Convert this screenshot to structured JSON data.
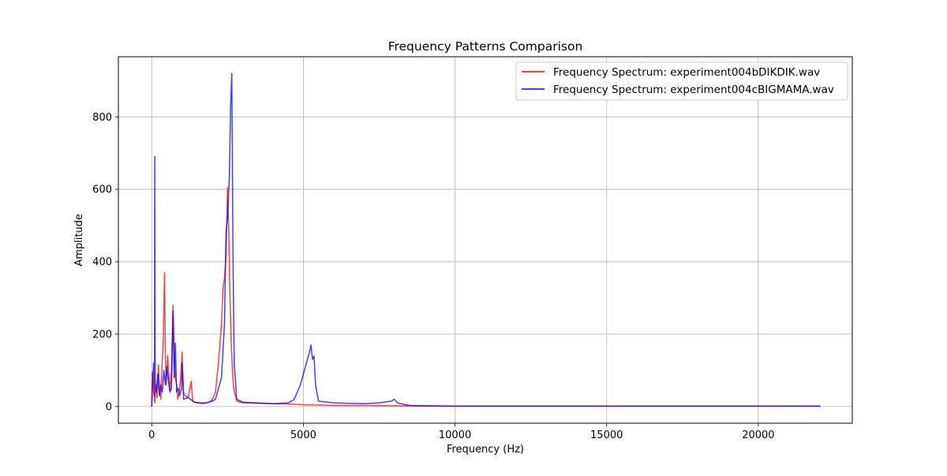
{
  "chart_data": {
    "type": "line",
    "title": "Frequency Patterns Comparison",
    "xlabel": "Frequency (Hz)",
    "ylabel": "Amplitude",
    "xlim": [
      -1100,
      23100
    ],
    "ylim": [
      -46,
      966
    ],
    "xticks": [
      0,
      5000,
      10000,
      15000,
      20000
    ],
    "yticks": [
      0,
      200,
      400,
      600,
      800
    ],
    "grid": true,
    "legend_position": "top-right",
    "series": [
      {
        "name": "Frequency Spectrum: experiment004bDIKDIK.wav",
        "color": "#ff0000",
        "alpha": 0.75,
        "points": [
          [
            0,
            0
          ],
          [
            20,
            95
          ],
          [
            60,
            40
          ],
          [
            100,
            10
          ],
          [
            140,
            60
          ],
          [
            180,
            25
          ],
          [
            220,
            115
          ],
          [
            260,
            50
          ],
          [
            300,
            20
          ],
          [
            340,
            110
          ],
          [
            380,
            185
          ],
          [
            420,
            370
          ],
          [
            450,
            140
          ],
          [
            480,
            60
          ],
          [
            520,
            140
          ],
          [
            560,
            90
          ],
          [
            600,
            45
          ],
          [
            650,
            100
          ],
          [
            700,
            280
          ],
          [
            740,
            150
          ],
          [
            780,
            80
          ],
          [
            820,
            60
          ],
          [
            860,
            20
          ],
          [
            900,
            40
          ],
          [
            950,
            75
          ],
          [
            1000,
            150
          ],
          [
            1050,
            40
          ],
          [
            1100,
            30
          ],
          [
            1200,
            25
          ],
          [
            1300,
            70
          ],
          [
            1350,
            15
          ],
          [
            1500,
            10
          ],
          [
            1700,
            8
          ],
          [
            1900,
            12
          ],
          [
            2000,
            20
          ],
          [
            2100,
            40
          ],
          [
            2200,
            120
          ],
          [
            2300,
            230
          ],
          [
            2350,
            330
          ],
          [
            2400,
            355
          ],
          [
            2450,
            420
          ],
          [
            2500,
            605
          ],
          [
            2540,
            480
          ],
          [
            2580,
            300
          ],
          [
            2620,
            180
          ],
          [
            2660,
            100
          ],
          [
            2700,
            50
          ],
          [
            2800,
            15
          ],
          [
            3000,
            10
          ],
          [
            3500,
            9
          ],
          [
            4000,
            8
          ],
          [
            4500,
            7
          ],
          [
            5000,
            5
          ],
          [
            5500,
            4
          ],
          [
            6000,
            3
          ],
          [
            7000,
            3
          ],
          [
            8000,
            2
          ],
          [
            10000,
            1
          ],
          [
            15000,
            1
          ],
          [
            20000,
            1
          ],
          [
            22050,
            1
          ]
        ]
      },
      {
        "name": "Frequency Spectrum: experiment004cBIGMAMA.wav",
        "color": "#0000ff",
        "alpha": 0.75,
        "points": [
          [
            0,
            0
          ],
          [
            20,
            50
          ],
          [
            60,
            120
          ],
          [
            90,
            30
          ],
          [
            100,
            690
          ],
          [
            115,
            60
          ],
          [
            150,
            40
          ],
          [
            200,
            90
          ],
          [
            250,
            30
          ],
          [
            300,
            60
          ],
          [
            350,
            40
          ],
          [
            400,
            100
          ],
          [
            450,
            60
          ],
          [
            500,
            110
          ],
          [
            550,
            70
          ],
          [
            600,
            40
          ],
          [
            650,
            50
          ],
          [
            700,
            265
          ],
          [
            740,
            80
          ],
          [
            780,
            175
          ],
          [
            820,
            40
          ],
          [
            880,
            50
          ],
          [
            920,
            30
          ],
          [
            980,
            50
          ],
          [
            1000,
            120
          ],
          [
            1050,
            20
          ],
          [
            1200,
            25
          ],
          [
            1400,
            12
          ],
          [
            1600,
            10
          ],
          [
            1800,
            10
          ],
          [
            2000,
            15
          ],
          [
            2100,
            20
          ],
          [
            2200,
            50
          ],
          [
            2300,
            80
          ],
          [
            2400,
            230
          ],
          [
            2450,
            480
          ],
          [
            2500,
            520
          ],
          [
            2560,
            640
          ],
          [
            2600,
            830
          ],
          [
            2640,
            920
          ],
          [
            2680,
            400
          ],
          [
            2720,
            120
          ],
          [
            2800,
            20
          ],
          [
            3000,
            12
          ],
          [
            3500,
            10
          ],
          [
            4000,
            8
          ],
          [
            4500,
            10
          ],
          [
            4700,
            20
          ],
          [
            4800,
            40
          ],
          [
            4900,
            60
          ],
          [
            5000,
            90
          ],
          [
            5100,
            120
          ],
          [
            5200,
            150
          ],
          [
            5250,
            170
          ],
          [
            5300,
            130
          ],
          [
            5350,
            140
          ],
          [
            5400,
            60
          ],
          [
            5500,
            15
          ],
          [
            6000,
            10
          ],
          [
            7000,
            8
          ],
          [
            7500,
            10
          ],
          [
            7900,
            15
          ],
          [
            8000,
            20
          ],
          [
            8100,
            10
          ],
          [
            8500,
            3
          ],
          [
            9000,
            2
          ],
          [
            10000,
            1
          ],
          [
            15000,
            1
          ],
          [
            20000,
            1
          ],
          [
            22050,
            1
          ]
        ]
      }
    ]
  }
}
